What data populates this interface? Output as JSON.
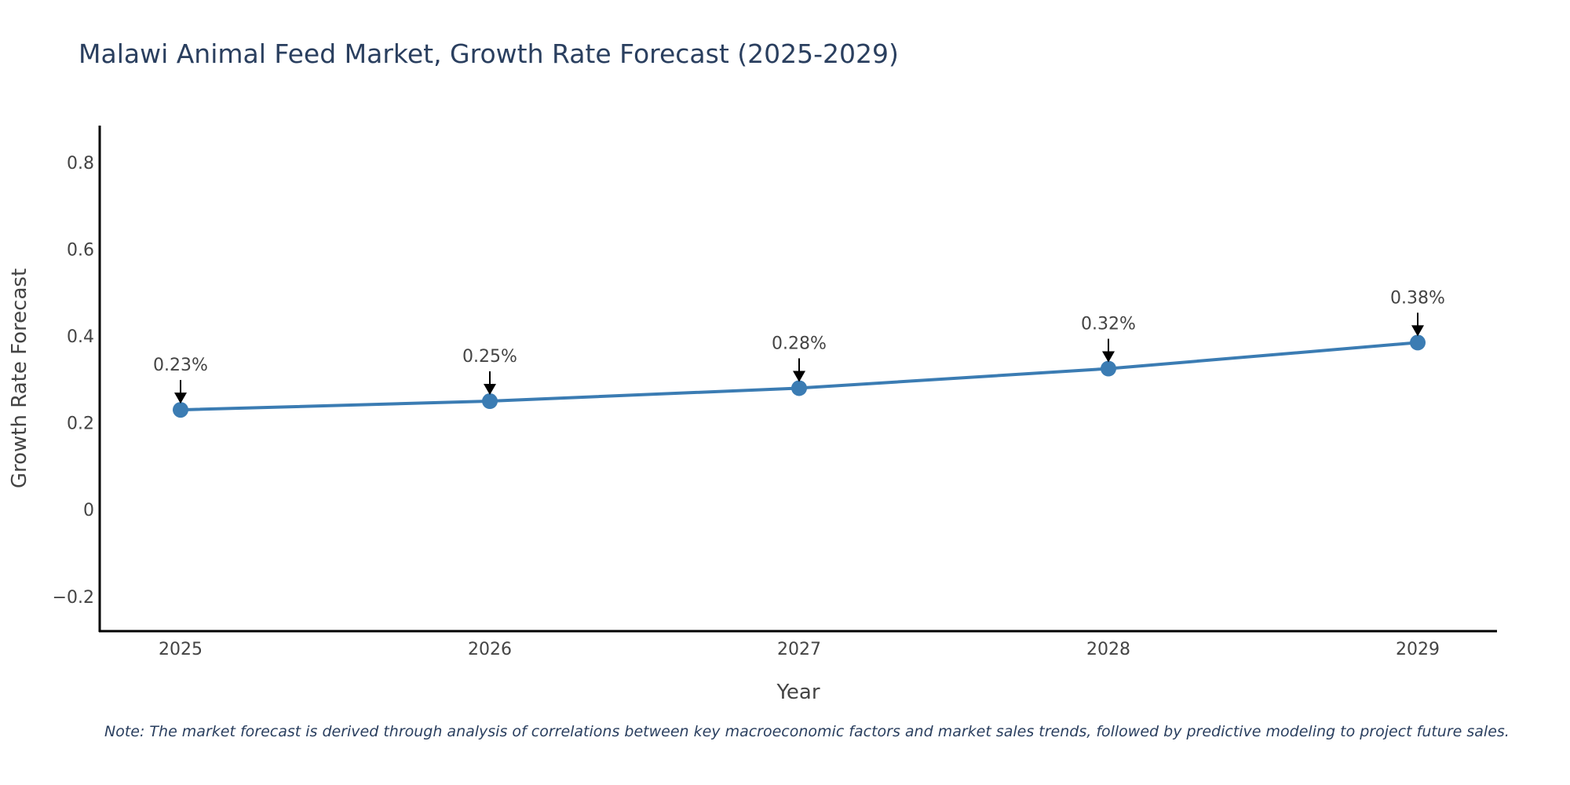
{
  "chart_data": {
    "type": "line",
    "title": "Malawi Animal Feed Market, Growth Rate Forecast (2025-2029)",
    "xlabel": "Year",
    "ylabel": "Growth Rate Forecast",
    "categories": [
      "2025",
      "2026",
      "2027",
      "2028",
      "2029"
    ],
    "series": [
      {
        "name": "Growth Rate Forecast",
        "values": [
          0.23,
          0.25,
          0.28,
          0.325,
          0.385
        ]
      }
    ],
    "data_labels": [
      "0.23%",
      "0.25%",
      "0.28%",
      "0.32%",
      "0.38%"
    ],
    "ylim": [
      -0.28,
      0.885
    ],
    "yticks": [
      -0.2,
      0,
      0.2,
      0.4,
      0.6,
      0.8
    ],
    "ytick_labels": [
      "−0.2",
      "0",
      "0.2",
      "0.4",
      "0.6",
      "0.8"
    ],
    "grid": false,
    "legend": "none",
    "line_color": "#3b7cb3",
    "note": "Note: The market forecast is derived through analysis of correlations between key macroeconomic factors and market sales trends, followed by predictive modeling to project future sales."
  }
}
